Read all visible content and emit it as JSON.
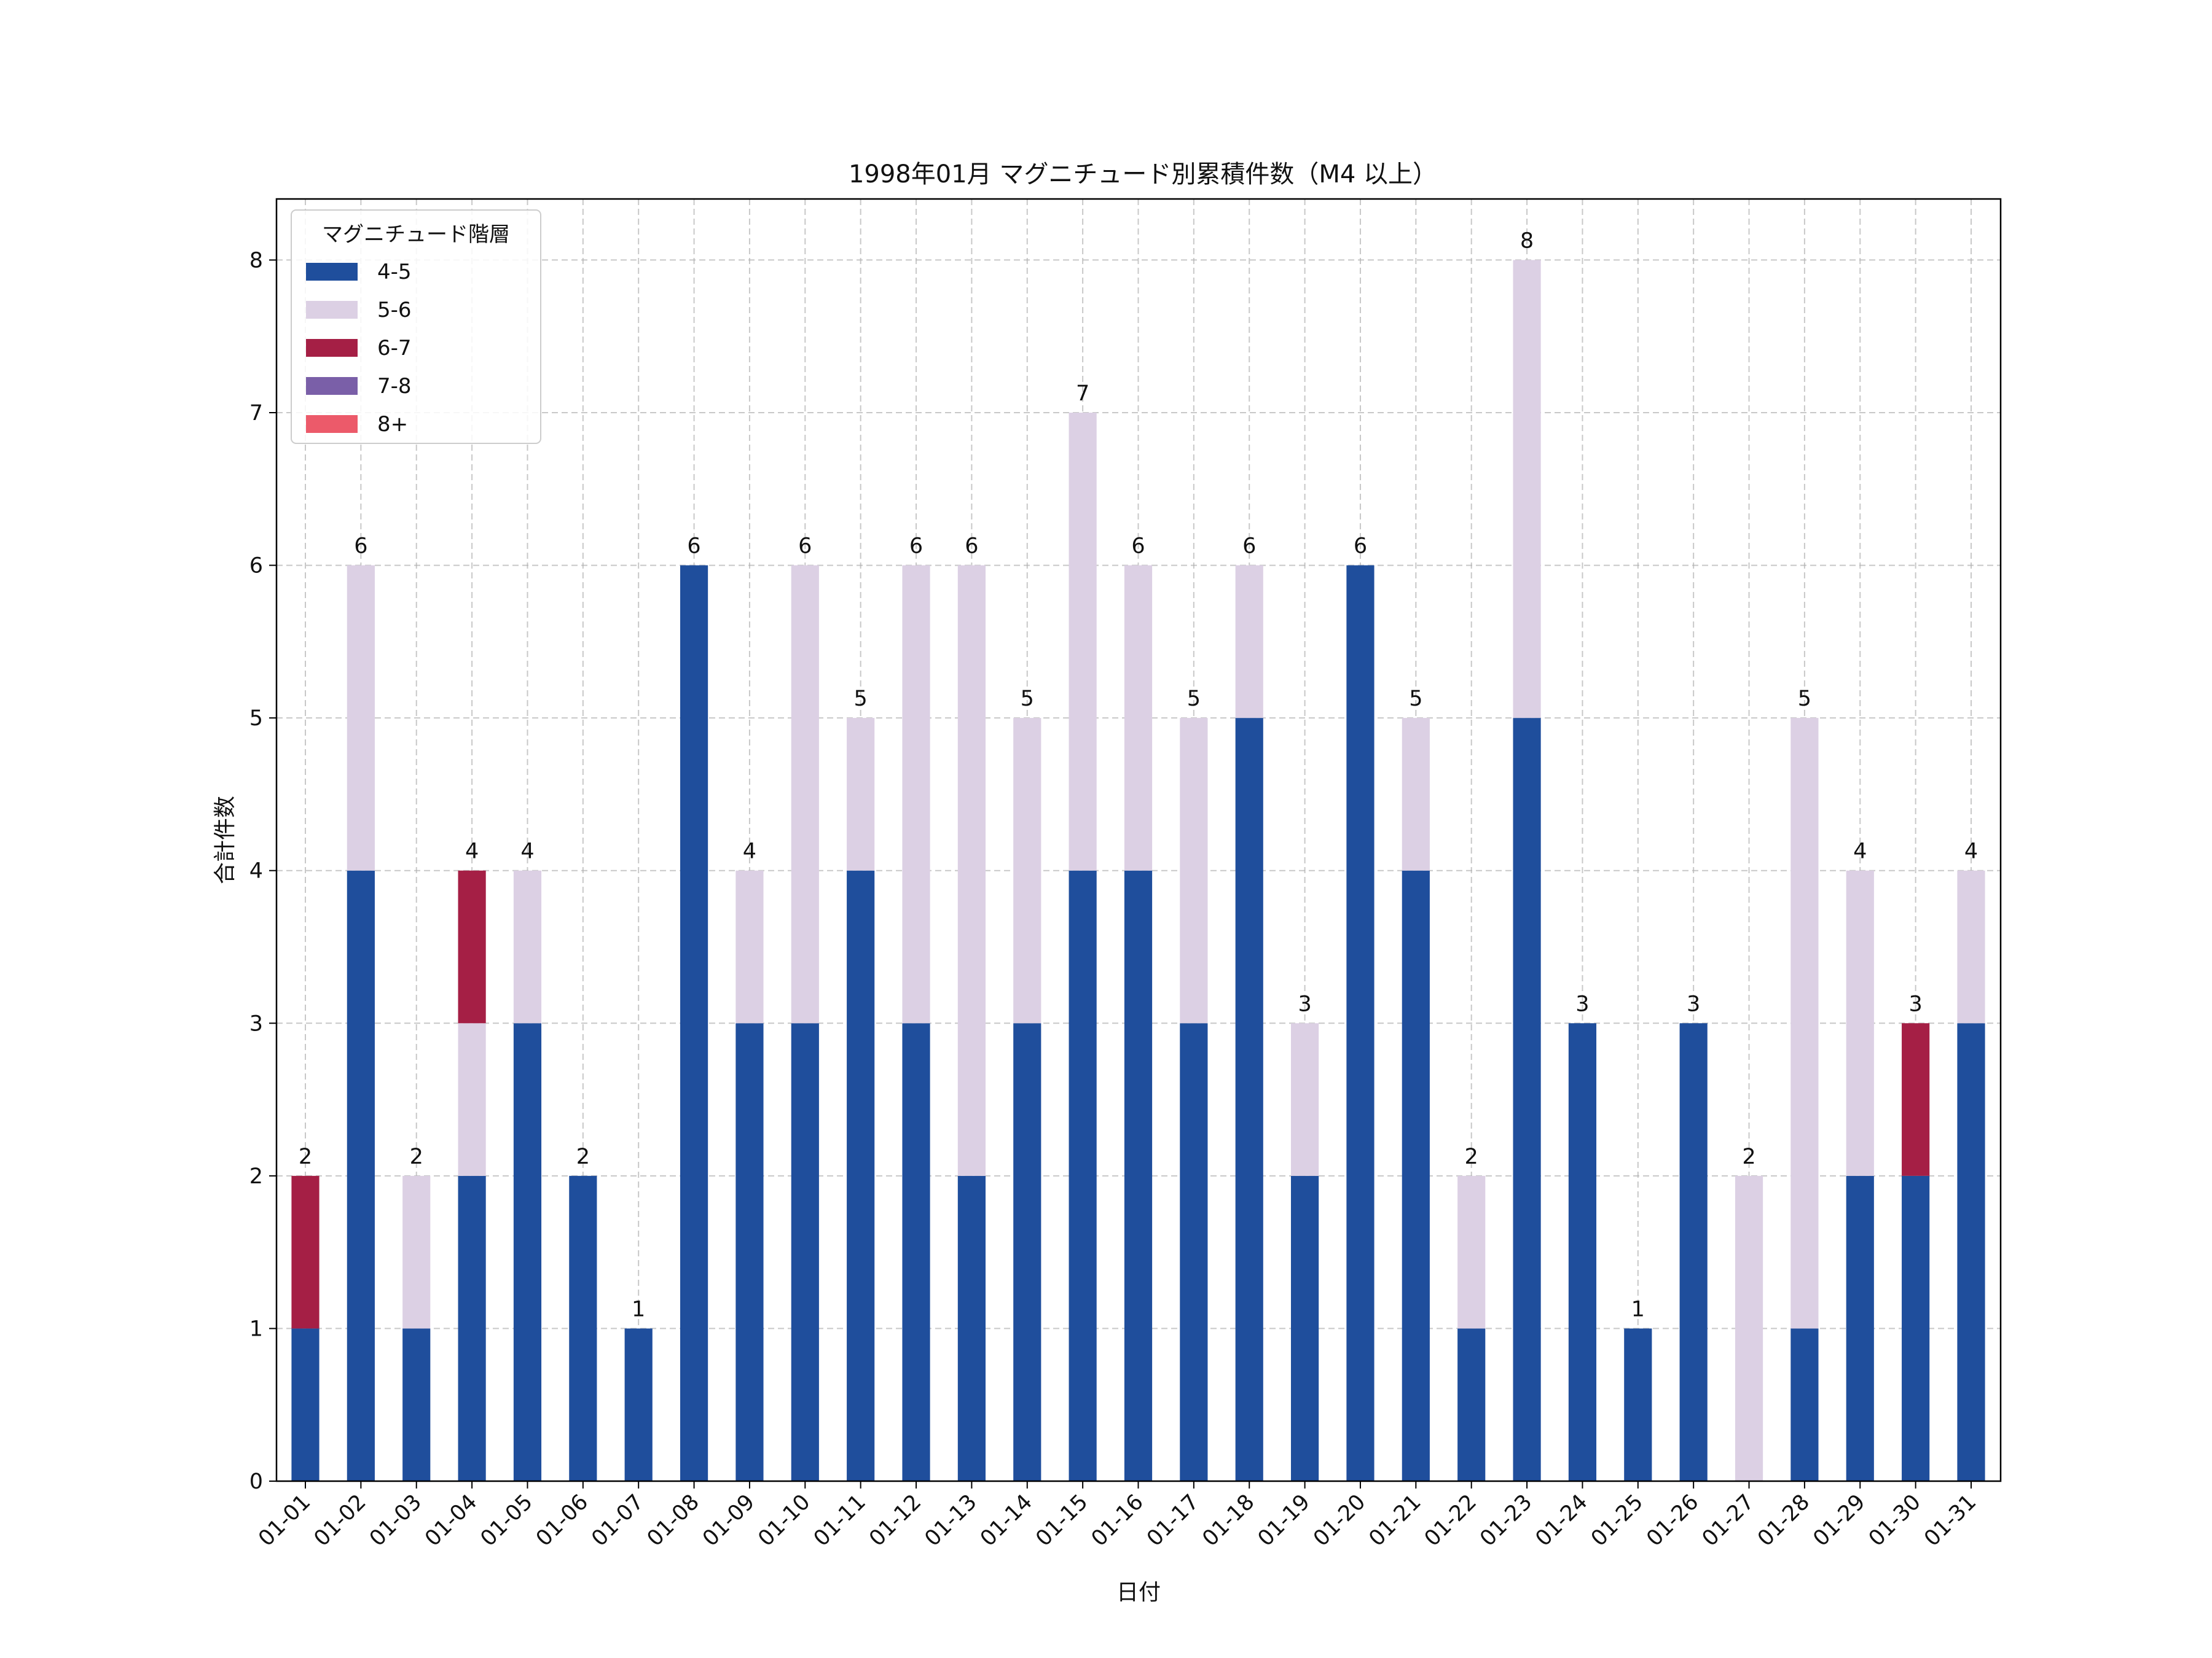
{
  "chart_data": {
    "type": "bar",
    "stacked": true,
    "title": "1998年01月 マグニチュード別累積件数（M4 以上）",
    "xlabel": "日付",
    "ylabel": "合計件数",
    "ylim": [
      0,
      8.4
    ],
    "yticks": [
      0,
      1,
      2,
      3,
      4,
      5,
      6,
      7,
      8
    ],
    "grid": true,
    "legend": {
      "title": "マグニチュード階層",
      "position": "top-left"
    },
    "categories": [
      "01-01",
      "01-02",
      "01-03",
      "01-04",
      "01-05",
      "01-06",
      "01-07",
      "01-08",
      "01-09",
      "01-10",
      "01-11",
      "01-12",
      "01-13",
      "01-14",
      "01-15",
      "01-16",
      "01-17",
      "01-18",
      "01-19",
      "01-20",
      "01-21",
      "01-22",
      "01-23",
      "01-24",
      "01-25",
      "01-26",
      "01-27",
      "01-28",
      "01-29",
      "01-30",
      "01-31"
    ],
    "series": [
      {
        "name": "4-5",
        "color": "#1f4e9c",
        "values": [
          1,
          4,
          1,
          2,
          3,
          2,
          1,
          6,
          3,
          3,
          4,
          3,
          2,
          3,
          4,
          4,
          3,
          5,
          2,
          6,
          4,
          1,
          5,
          3,
          1,
          3,
          0,
          1,
          2,
          2,
          3
        ]
      },
      {
        "name": "5-6",
        "color": "#dcd0e4",
        "values": [
          0,
          2,
          1,
          1,
          1,
          0,
          0,
          0,
          1,
          3,
          1,
          3,
          4,
          2,
          3,
          2,
          2,
          1,
          1,
          0,
          1,
          1,
          3,
          0,
          0,
          0,
          2,
          4,
          2,
          0,
          1
        ]
      },
      {
        "name": "6-7",
        "color": "#a51f45",
        "values": [
          1,
          0,
          0,
          1,
          0,
          0,
          0,
          0,
          0,
          0,
          0,
          0,
          0,
          0,
          0,
          0,
          0,
          0,
          0,
          0,
          0,
          0,
          0,
          0,
          0,
          0,
          0,
          0,
          0,
          1,
          0
        ]
      },
      {
        "name": "7-8",
        "color": "#7a5fa8",
        "values": [
          0,
          0,
          0,
          0,
          0,
          0,
          0,
          0,
          0,
          0,
          0,
          0,
          0,
          0,
          0,
          0,
          0,
          0,
          0,
          0,
          0,
          0,
          0,
          0,
          0,
          0,
          0,
          0,
          0,
          0,
          0
        ]
      },
      {
        "name": "8+",
        "color": "#ec5a6a",
        "values": [
          0,
          0,
          0,
          0,
          0,
          0,
          0,
          0,
          0,
          0,
          0,
          0,
          0,
          0,
          0,
          0,
          0,
          0,
          0,
          0,
          0,
          0,
          0,
          0,
          0,
          0,
          0,
          0,
          0,
          0,
          0
        ]
      }
    ],
    "totals": [
      2,
      6,
      2,
      4,
      4,
      2,
      1,
      6,
      4,
      6,
      5,
      6,
      6,
      5,
      7,
      6,
      5,
      6,
      3,
      6,
      5,
      2,
      8,
      3,
      1,
      3,
      2,
      5,
      4,
      3,
      4
    ]
  }
}
